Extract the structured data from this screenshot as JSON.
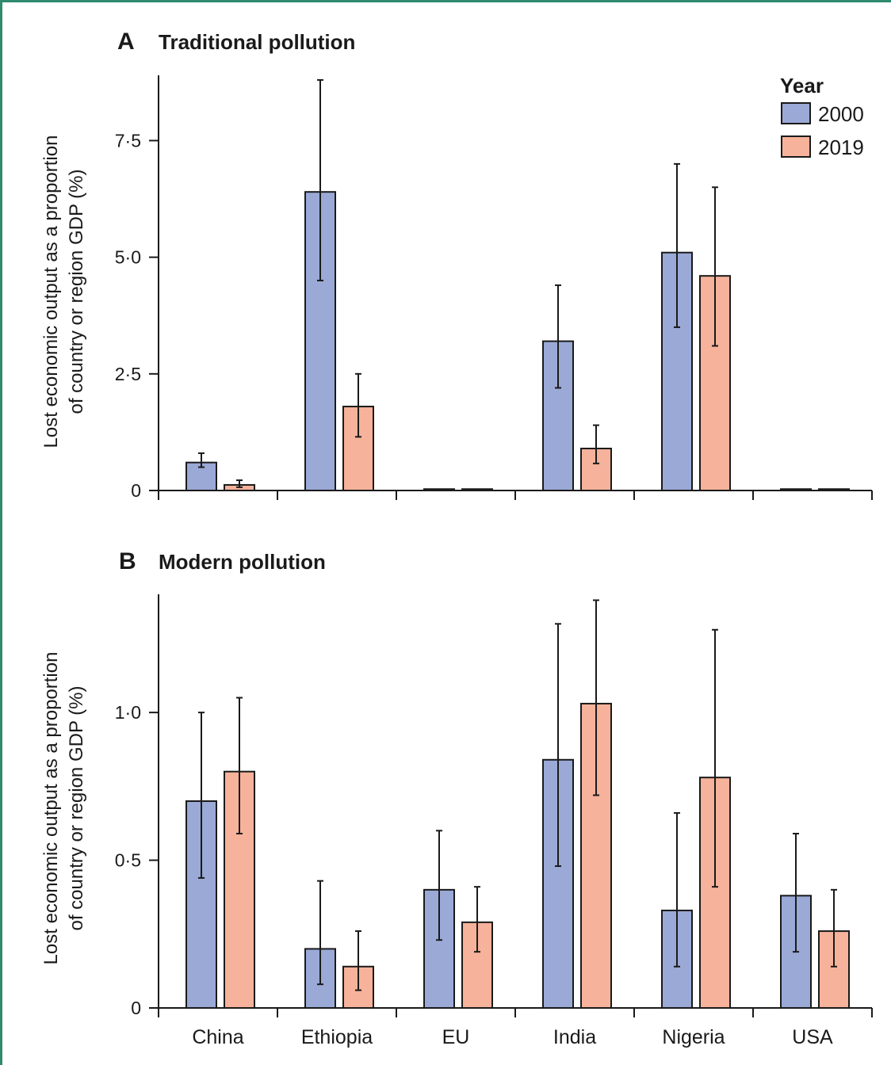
{
  "colors": {
    "s2000": "#9aa9d6",
    "s2019": "#f6b29a",
    "stroke": "#1a1a1a"
  },
  "legend": {
    "title": "Year",
    "items": [
      {
        "label": "2000",
        "color": "#9aa9d6"
      },
      {
        "label": "2019",
        "color": "#f6b29a"
      }
    ]
  },
  "categories": [
    "China",
    "Ethiopia",
    "EU",
    "India",
    "Nigeria",
    "USA"
  ],
  "chart_data": [
    {
      "type": "bar",
      "panel": "A",
      "title": "Traditional pollution",
      "ylabel": [
        "Lost economic output as a proportion",
        "of country or region GDP (%)"
      ],
      "ylim": [
        0,
        8.9
      ],
      "yticks": [
        0,
        2.5,
        5.0,
        7.5
      ],
      "ytick_labels": [
        "0",
        "2·5",
        "5·0",
        "7·5"
      ],
      "legend_position": "top-right",
      "categories": [
        "China",
        "Ethiopia",
        "EU",
        "India",
        "Nigeria",
        "USA"
      ],
      "series": [
        {
          "name": "2000",
          "values": [
            0.6,
            6.4,
            0.03,
            3.2,
            5.1,
            0.03
          ],
          "error_low": [
            0.5,
            4.5,
            0.03,
            2.2,
            3.5,
            0.03
          ],
          "error_high": [
            0.8,
            8.8,
            0.03,
            4.4,
            7.0,
            0.03
          ]
        },
        {
          "name": "2019",
          "values": [
            0.12,
            1.8,
            0.03,
            0.9,
            4.6,
            0.03
          ],
          "error_low": [
            0.07,
            1.15,
            0.03,
            0.58,
            3.1,
            0.03
          ],
          "error_high": [
            0.22,
            2.5,
            0.03,
            1.4,
            6.5,
            0.03
          ]
        }
      ]
    },
    {
      "type": "bar",
      "panel": "B",
      "title": "Modern pollution",
      "ylabel": [
        "Lost economic output as a proportion",
        "of country or region GDP (%)"
      ],
      "ylim": [
        0,
        1.4
      ],
      "yticks": [
        0,
        0.5,
        1.0
      ],
      "ytick_labels": [
        "0",
        "0·5",
        "1·0"
      ],
      "categories": [
        "China",
        "Ethiopia",
        "EU",
        "India",
        "Nigeria",
        "USA"
      ],
      "series": [
        {
          "name": "2000",
          "values": [
            0.7,
            0.2,
            0.4,
            0.84,
            0.33,
            0.38
          ],
          "error_low": [
            0.44,
            0.08,
            0.23,
            0.48,
            0.14,
            0.19
          ],
          "error_high": [
            1.0,
            0.43,
            0.6,
            1.3,
            0.66,
            0.59
          ]
        },
        {
          "name": "2019",
          "values": [
            0.8,
            0.14,
            0.29,
            1.03,
            0.78,
            0.26
          ],
          "error_low": [
            0.59,
            0.06,
            0.19,
            0.72,
            0.41,
            0.14
          ],
          "error_high": [
            1.05,
            0.26,
            0.41,
            1.38,
            1.28,
            0.4
          ]
        }
      ]
    }
  ]
}
